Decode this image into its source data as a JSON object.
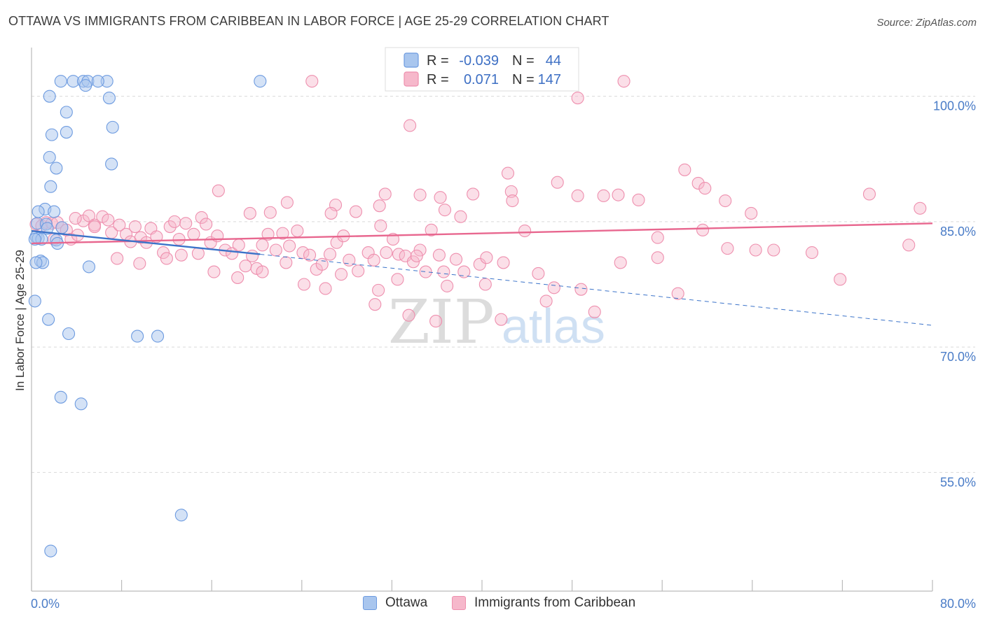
{
  "title": "OTTAWA VS IMMIGRANTS FROM CARIBBEAN IN LABOR FORCE | AGE 25-29 CORRELATION CHART",
  "source": "Source: ZipAtlas.com",
  "watermark": {
    "zip": "ZIP",
    "atlas": "atlas"
  },
  "legend_top": {
    "r_label": "R =",
    "n_label": "N =",
    "rows": [
      {
        "r": "-0.039",
        "n": "44"
      },
      {
        "r": "0.071",
        "n": "147"
      }
    ]
  },
  "legend_bottom": [
    "Ottawa",
    "Immigrants from Caribbean"
  ],
  "colors": {
    "ottawa_fill": "#a9c6ee",
    "ottawa_stroke": "#6d9be0",
    "ottawa_line": "#3b73c9",
    "carib_fill": "#f6b8cb",
    "carib_stroke": "#ee8fae",
    "carib_line": "#e8678f",
    "grid": "#d9d9d9",
    "tick_text": "#4a7cc7"
  },
  "chart_data": {
    "type": "scatter",
    "title": "OTTAWA VS IMMIGRANTS FROM CARIBBEAN IN LABOR FORCE | AGE 25-29 CORRELATION CHART",
    "xlabel": "",
    "ylabel": "In Labor Force | Age 25-29",
    "xlim": [
      0,
      80
    ],
    "ylim": [
      40.8,
      106.5
    ],
    "x_tick_labels": [
      "0.0%",
      "80.0%"
    ],
    "y_ticks": [
      100,
      85,
      70,
      55
    ],
    "y_tick_labels": [
      "100.0%",
      "85.0%",
      "70.0%",
      "55.0%"
    ],
    "grid": true,
    "legend_position": "top-center",
    "series": [
      {
        "name": "Ottawa",
        "r": -0.039,
        "n": 44,
        "trend": {
          "x0": 0,
          "y0": 83.9,
          "x1": 20.3,
          "y1": 81.1,
          "dash_x1": 80,
          "dash_y1": 72.6
        },
        "points": [
          [
            2.6,
            101.8
          ],
          [
            3.7,
            101.8
          ],
          [
            4.6,
            101.8
          ],
          [
            6.7,
            101.8
          ],
          [
            5.0,
            101.8
          ],
          [
            5.9,
            101.8
          ],
          [
            20.3,
            101.8
          ],
          [
            1.6,
            100.0
          ],
          [
            6.9,
            99.8
          ],
          [
            4.8,
            101.3
          ],
          [
            3.1,
            98.1
          ],
          [
            7.2,
            96.3
          ],
          [
            1.8,
            95.4
          ],
          [
            3.1,
            95.7
          ],
          [
            1.6,
            92.7
          ],
          [
            2.2,
            91.4
          ],
          [
            7.1,
            91.9
          ],
          [
            1.7,
            89.2
          ],
          [
            1.2,
            86.5
          ],
          [
            2.0,
            86.2
          ],
          [
            0.6,
            86.2
          ],
          [
            0.5,
            84.8
          ],
          [
            1.3,
            84.7
          ],
          [
            1.4,
            84.2
          ],
          [
            2.7,
            84.3
          ],
          [
            0.4,
            83.2
          ],
          [
            0.6,
            83.0
          ],
          [
            0.9,
            82.9
          ],
          [
            2.2,
            82.8
          ],
          [
            0.3,
            82.9
          ],
          [
            0.8,
            80.3
          ],
          [
            1.0,
            80.1
          ],
          [
            0.4,
            80.1
          ],
          [
            5.1,
            79.6
          ],
          [
            2.3,
            82.4
          ],
          [
            0.3,
            75.5
          ],
          [
            1.5,
            73.3
          ],
          [
            3.3,
            71.6
          ],
          [
            9.4,
            71.3
          ],
          [
            11.2,
            71.3
          ],
          [
            2.6,
            64.0
          ],
          [
            4.4,
            63.2
          ],
          [
            13.3,
            49.9
          ],
          [
            1.7,
            45.6
          ]
        ]
      },
      {
        "name": "Immigrants from Caribbean",
        "r": 0.071,
        "n": 147,
        "trend": {
          "x0": 0,
          "y0": 82.4,
          "x1": 80,
          "y1": 84.8
        },
        "points": [
          [
            24.9,
            101.8
          ],
          [
            46.7,
            101.9
          ],
          [
            48.5,
            99.8
          ],
          [
            52.6,
            101.8
          ],
          [
            33.6,
            96.5
          ],
          [
            42.3,
            90.8
          ],
          [
            58.0,
            91.2
          ],
          [
            46.7,
            89.7
          ],
          [
            59.2,
            89.6
          ],
          [
            16.6,
            88.7
          ],
          [
            22.7,
            87.3
          ],
          [
            27.0,
            87.0
          ],
          [
            31.4,
            88.3
          ],
          [
            34.5,
            88.2
          ],
          [
            36.3,
            87.9
          ],
          [
            39.2,
            88.3
          ],
          [
            42.6,
            88.6
          ],
          [
            42.7,
            87.5
          ],
          [
            19.4,
            86.0
          ],
          [
            21.2,
            86.1
          ],
          [
            26.6,
            86.0
          ],
          [
            28.8,
            86.2
          ],
          [
            30.9,
            86.9
          ],
          [
            36.7,
            86.4
          ],
          [
            38.1,
            85.6
          ],
          [
            48.5,
            88.1
          ],
          [
            50.8,
            88.1
          ],
          [
            53.9,
            87.6
          ],
          [
            61.6,
            87.5
          ],
          [
            0.4,
            84.7
          ],
          [
            0.9,
            84.5
          ],
          [
            1.3,
            84.9
          ],
          [
            1.8,
            84.8
          ],
          [
            2.3,
            84.9
          ],
          [
            2.7,
            84.3
          ],
          [
            3.1,
            84.0
          ],
          [
            3.5,
            82.9
          ],
          [
            4.1,
            83.4
          ],
          [
            4.6,
            85.1
          ],
          [
            5.1,
            85.7
          ],
          [
            5.6,
            84.6
          ],
          [
            6.3,
            85.6
          ],
          [
            6.8,
            85.2
          ],
          [
            7.1,
            83.7
          ],
          [
            7.8,
            84.6
          ],
          [
            8.4,
            83.5
          ],
          [
            8.8,
            82.6
          ],
          [
            9.2,
            84.4
          ],
          [
            9.7,
            83.1
          ],
          [
            10.2,
            82.5
          ],
          [
            10.6,
            84.2
          ],
          [
            11.1,
            83.2
          ],
          [
            11.7,
            81.3
          ],
          [
            12.3,
            84.4
          ],
          [
            12.7,
            85.0
          ],
          [
            13.1,
            82.9
          ],
          [
            13.7,
            84.8
          ],
          [
            14.4,
            83.5
          ],
          [
            15.1,
            85.5
          ],
          [
            15.5,
            84.7
          ],
          [
            15.9,
            82.5
          ],
          [
            16.5,
            83.3
          ],
          [
            17.2,
            81.6
          ],
          [
            17.8,
            81.2
          ],
          [
            18.4,
            82.2
          ],
          [
            19.0,
            79.7
          ],
          [
            19.6,
            80.9
          ],
          [
            20.0,
            79.4
          ],
          [
            20.5,
            82.2
          ],
          [
            21.0,
            83.5
          ],
          [
            21.7,
            81.6
          ],
          [
            22.3,
            83.6
          ],
          [
            22.9,
            82.1
          ],
          [
            23.6,
            83.9
          ],
          [
            24.1,
            81.3
          ],
          [
            24.7,
            81.0
          ],
          [
            25.3,
            79.3
          ],
          [
            25.8,
            79.9
          ],
          [
            26.5,
            81.1
          ],
          [
            27.1,
            82.5
          ],
          [
            27.7,
            83.3
          ],
          [
            28.2,
            80.4
          ],
          [
            29.0,
            79.1
          ],
          [
            29.9,
            81.3
          ],
          [
            30.4,
            80.4
          ],
          [
            31.0,
            84.5
          ],
          [
            31.5,
            81.3
          ],
          [
            32.1,
            82.9
          ],
          [
            32.6,
            81.1
          ],
          [
            33.2,
            80.9
          ],
          [
            33.9,
            80.2
          ],
          [
            34.5,
            81.6
          ],
          [
            35.0,
            79.0
          ],
          [
            35.5,
            84.0
          ],
          [
            36.2,
            81.0
          ],
          [
            36.6,
            79.0
          ],
          [
            37.7,
            80.5
          ],
          [
            38.4,
            79.0
          ],
          [
            2.0,
            82.9
          ],
          [
            3.9,
            85.4
          ],
          [
            5.6,
            84.4
          ],
          [
            7.6,
            80.6
          ],
          [
            9.6,
            80.0
          ],
          [
            12.0,
            80.6
          ],
          [
            13.3,
            81.0
          ],
          [
            14.8,
            81.2
          ],
          [
            16.2,
            79.0
          ],
          [
            18.3,
            78.3
          ],
          [
            20.5,
            79.0
          ],
          [
            22.6,
            80.1
          ],
          [
            24.2,
            77.5
          ],
          [
            27.5,
            78.7
          ],
          [
            30.8,
            76.8
          ],
          [
            32.5,
            78.1
          ],
          [
            34.2,
            80.9
          ],
          [
            36.9,
            77.3
          ],
          [
            39.8,
            79.9
          ],
          [
            40.4,
            80.7
          ],
          [
            41.9,
            80.1
          ],
          [
            43.8,
            83.9
          ],
          [
            45.0,
            78.8
          ],
          [
            46.4,
            77.1
          ],
          [
            48.8,
            76.9
          ],
          [
            52.3,
            80.1
          ],
          [
            55.6,
            80.7
          ],
          [
            57.4,
            76.4
          ],
          [
            61.8,
            81.8
          ],
          [
            65.9,
            81.6
          ],
          [
            69.3,
            81.3
          ],
          [
            71.8,
            78.1
          ],
          [
            77.9,
            82.2
          ],
          [
            78.9,
            86.6
          ],
          [
            74.4,
            88.3
          ],
          [
            59.6,
            84.0
          ],
          [
            59.8,
            89.0
          ],
          [
            52.1,
            88.2
          ],
          [
            26.1,
            77.0
          ],
          [
            30.5,
            75.1
          ],
          [
            33.5,
            73.8
          ],
          [
            35.9,
            73.1
          ],
          [
            40.3,
            77.5
          ],
          [
            41.7,
            73.3
          ],
          [
            45.7,
            75.5
          ],
          [
            50.0,
            74.2
          ],
          [
            55.6,
            83.1
          ],
          [
            64.3,
            81.6
          ],
          [
            63.9,
            86.0
          ]
        ]
      }
    ]
  }
}
